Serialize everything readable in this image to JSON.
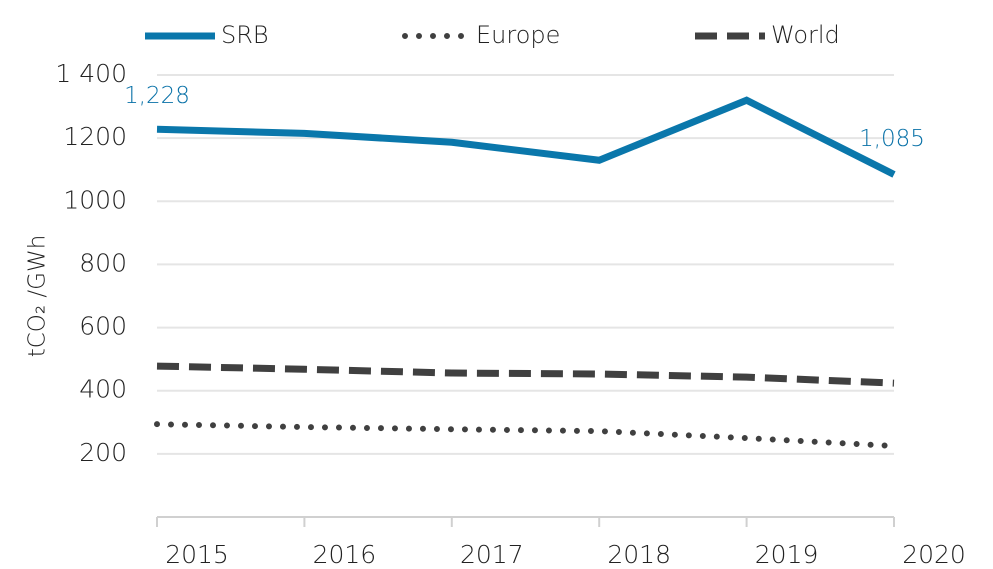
{
  "chart_data": {
    "type": "line",
    "y_label": "tCO₂ /GWh",
    "categories": [
      "2015",
      "2016",
      "2017",
      "2018",
      "2019",
      "2020"
    ],
    "series": [
      {
        "name": "SRB",
        "color": "#0a77ab",
        "style": "solid",
        "values": [
          1228,
          1215,
          1187,
          1130,
          1320,
          1085
        ],
        "value_labels": [
          "1,228",
          null,
          null,
          null,
          null,
          "1,085"
        ]
      },
      {
        "name": "Europe",
        "color": "#404040",
        "style": "dotted",
        "values": [
          294,
          285,
          278,
          272,
          250,
          225
        ]
      },
      {
        "name": "World",
        "color": "#404040",
        "style": "dashed",
        "values": [
          478,
          468,
          456,
          453,
          443,
          424
        ]
      }
    ],
    "ylim": [
      0,
      1400
    ],
    "yticks": [
      200,
      400,
      600,
      800,
      1000,
      1200,
      {
        "value": 1400,
        "label": "1 400"
      }
    ],
    "grid": true,
    "legend": "top"
  }
}
